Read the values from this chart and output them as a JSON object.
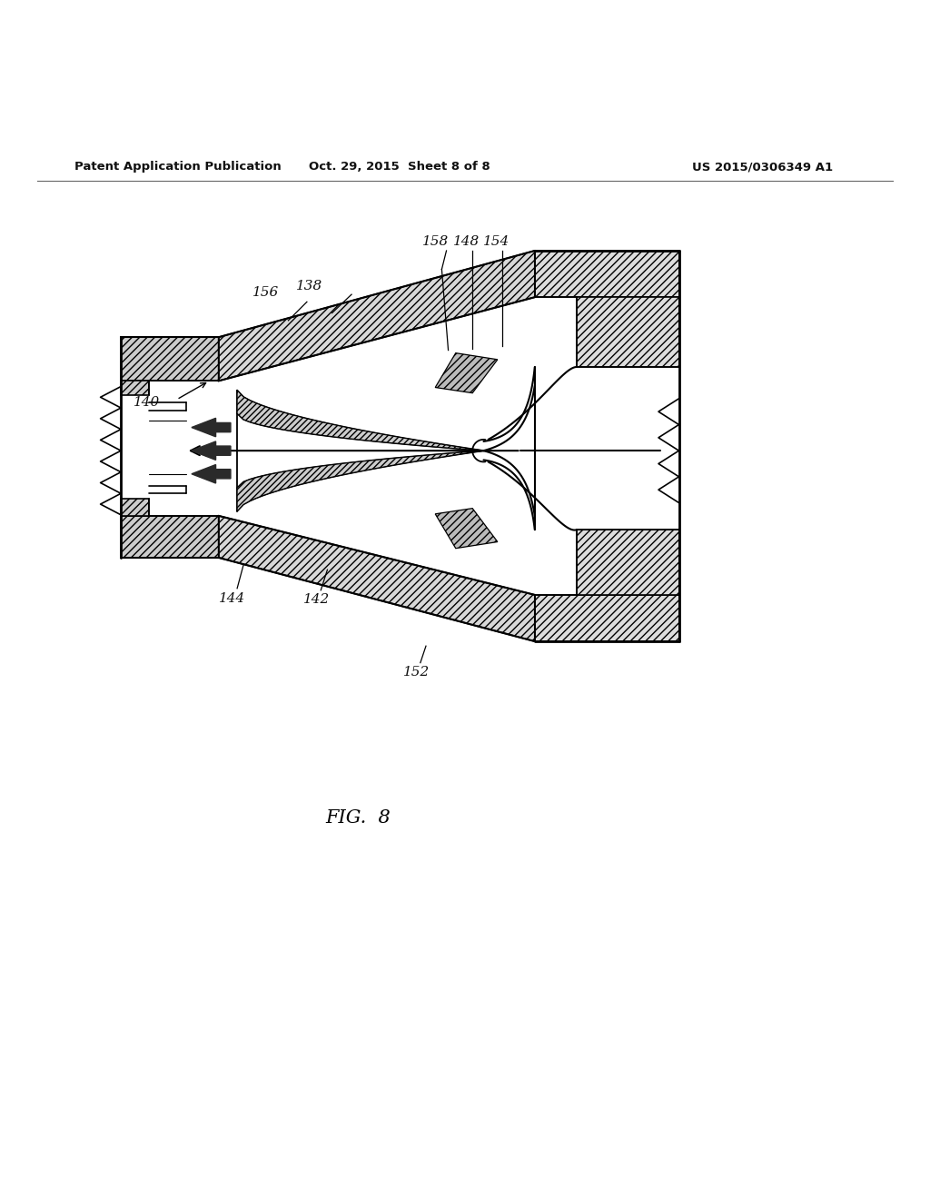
{
  "bg_color": "#ffffff",
  "title_left": "Patent Application Publication",
  "title_center": "Oct. 29, 2015  Sheet 8 of 8",
  "title_right": "US 2015/0306349 A1",
  "fig_label": "FIG.  8",
  "line_color": "#000000",
  "hatch_color": "#555555"
}
